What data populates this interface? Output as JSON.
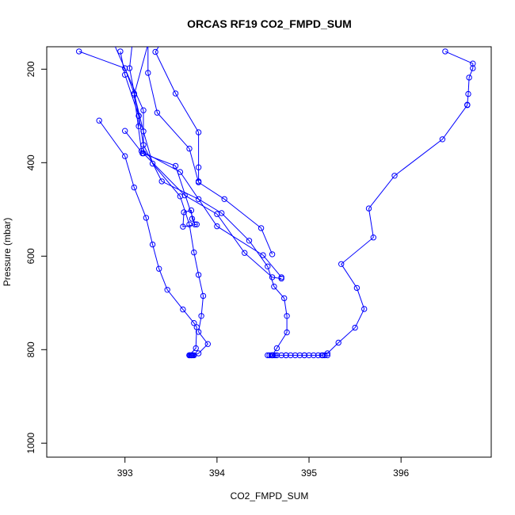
{
  "chart_data": {
    "type": "line",
    "title": "ORCAS RF19 CO2_FMPD_SUM",
    "xlabel": "CO2_FMPD_SUM",
    "ylabel": "Pressure (mbar)",
    "xlim": [
      392.15,
      396.98
    ],
    "ylim": [
      1030,
      152
    ],
    "y_reversed": true,
    "xticks": [
      393,
      394,
      395,
      396
    ],
    "yticks": [
      200,
      400,
      600,
      800,
      1000
    ],
    "grid": false,
    "legend": "none",
    "color": "#0000ff",
    "marker": "open-circle",
    "series": [
      {
        "points": [
          [
            392.5,
            162
          ],
          [
            393.0,
            198
          ],
          [
            393.1,
            252
          ],
          [
            393.2,
            333
          ],
          [
            393.3,
            402
          ],
          [
            393.6,
            472
          ],
          [
            393.7,
            532
          ],
          [
            393.75,
            592
          ],
          [
            393.8,
            640
          ],
          [
            393.85,
            685
          ],
          [
            393.83,
            728
          ],
          [
            393.8,
            762
          ],
          [
            393.9,
            788
          ],
          [
            393.8,
            808
          ],
          [
            393.75,
            812
          ],
          [
            393.72,
            812
          ],
          [
            393.7,
            812
          ]
        ]
      },
      {
        "points": [
          [
            392.95,
            162
          ],
          [
            393.0,
            212
          ],
          [
            393.15,
            300
          ],
          [
            393.2,
            362
          ],
          [
            393.4,
            440
          ],
          [
            393.8,
            478
          ],
          [
            394.05,
            508
          ],
          [
            394.35,
            567
          ],
          [
            394.55,
            622
          ],
          [
            394.62,
            665
          ],
          [
            394.73,
            690
          ],
          [
            394.76,
            728
          ],
          [
            394.76,
            763
          ],
          [
            394.65,
            797
          ],
          [
            394.6,
            812
          ]
        ]
      },
      {
        "points": [
          [
            392.72,
            310
          ],
          [
            393.0,
            386
          ],
          [
            393.1,
            453
          ],
          [
            393.23,
            518
          ],
          [
            393.3,
            575
          ],
          [
            393.37,
            627
          ],
          [
            393.46,
            672
          ],
          [
            393.63,
            714
          ],
          [
            393.75,
            743
          ],
          [
            393.78,
            752
          ],
          [
            393.77,
            797
          ],
          [
            393.7,
            812
          ]
        ]
      },
      {
        "points": [
          [
            393.0,
            332
          ],
          [
            393.19,
            380
          ],
          [
            393.55,
            407
          ],
          [
            393.76,
            532
          ],
          [
            393.73,
            520
          ],
          [
            393.72,
            502
          ],
          [
            393.64,
            506
          ],
          [
            393.63,
            537
          ],
          [
            393.78,
            532
          ]
        ]
      },
      {
        "points": [
          [
            396.48,
            162
          ],
          [
            396.78,
            188
          ],
          [
            396.78,
            198
          ],
          [
            396.74,
            218
          ],
          [
            396.73,
            253
          ],
          [
            396.72,
            276
          ],
          [
            396.72,
            277
          ],
          [
            396.45,
            350
          ],
          [
            395.93,
            428
          ],
          [
            395.65,
            498
          ],
          [
            395.7,
            560
          ],
          [
            395.35,
            617
          ],
          [
            395.52,
            668
          ],
          [
            395.6,
            713
          ],
          [
            395.5,
            753
          ],
          [
            395.32,
            785
          ],
          [
            395.2,
            808
          ],
          [
            395.15,
            812
          ],
          [
            394.95,
            812
          ],
          [
            394.75,
            812
          ],
          [
            394.6,
            812
          ]
        ]
      },
      {
        "points": [
          [
            392.8,
            110
          ],
          [
            393.2,
            288
          ],
          [
            393.2,
            380
          ],
          [
            393.65,
            470
          ],
          [
            394.0,
            510
          ],
          [
            394.3,
            593
          ],
          [
            394.6,
            645
          ],
          [
            394.7,
            648
          ]
        ]
      },
      {
        "points": [
          [
            393.3,
            110
          ],
          [
            393.1,
            255
          ],
          [
            393.18,
            375
          ],
          [
            393.6,
            420
          ],
          [
            394.0,
            536
          ],
          [
            394.5,
            598
          ],
          [
            394.7,
            645
          ]
        ]
      },
      {
        "points": [
          [
            393.25,
            110
          ],
          [
            393.25,
            208
          ],
          [
            393.35,
            293
          ],
          [
            393.7,
            370
          ],
          [
            393.8,
            442
          ],
          [
            394.08,
            478
          ],
          [
            394.48,
            540
          ],
          [
            394.6,
            596
          ]
        ]
      },
      {
        "points": [
          [
            393.5,
            110
          ],
          [
            393.33,
            163
          ],
          [
            393.55,
            252
          ],
          [
            393.8,
            335
          ],
          [
            393.8,
            410
          ],
          [
            393.8,
            440
          ]
        ]
      },
      {
        "points": [
          [
            393.1,
            110
          ],
          [
            393.05,
            198
          ],
          [
            393.15,
            300
          ],
          [
            393.15,
            322
          ]
        ]
      }
    ],
    "bottom_points": [
      393.7,
      393.71,
      393.72,
      393.73,
      393.74,
      394.55,
      394.57,
      394.59,
      394.61,
      394.63,
      394.65,
      394.7,
      394.75,
      394.8,
      394.85,
      394.9,
      394.95,
      395.0,
      395.05,
      395.1,
      395.14,
      395.17,
      395.2
    ],
    "bottom_pressure": 812
  }
}
